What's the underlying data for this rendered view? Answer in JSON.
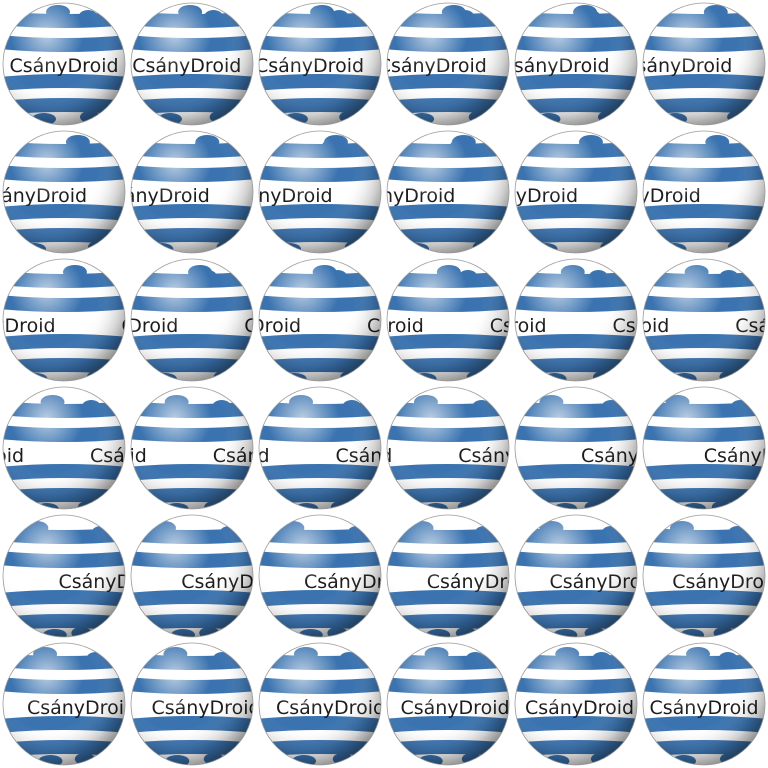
{
  "sheet": {
    "rows": 6,
    "columns": 6,
    "label_text": "CsányDroid",
    "colors": {
      "background": "#ffffff",
      "stripe": "#3a73b0",
      "sphere_highlight": "#ffffff",
      "sphere_shadow": "#6f6f6f",
      "text": "#1c1c1c"
    },
    "frames": [
      {
        "spin": 0.0,
        "tilt": 0
      },
      {
        "spin": 0.03,
        "tilt": 0
      },
      {
        "spin": 0.06,
        "tilt": 0
      },
      {
        "spin": 0.09,
        "tilt": 0
      },
      {
        "spin": 0.12,
        "tilt": 0
      },
      {
        "spin": 0.15,
        "tilt": 0
      },
      {
        "spin": 0.18,
        "tilt": 1
      },
      {
        "spin": 0.21,
        "tilt": 1
      },
      {
        "spin": 0.24,
        "tilt": 1
      },
      {
        "spin": 0.27,
        "tilt": 1
      },
      {
        "spin": 0.3,
        "tilt": 1
      },
      {
        "spin": 0.33,
        "tilt": 1
      },
      {
        "spin": 0.36,
        "tilt": 2
      },
      {
        "spin": 0.39,
        "tilt": 2
      },
      {
        "spin": 0.42,
        "tilt": 2
      },
      {
        "spin": 0.45,
        "tilt": 2
      },
      {
        "spin": 0.48,
        "tilt": 2
      },
      {
        "spin": 0.51,
        "tilt": 2
      },
      {
        "spin": 0.54,
        "tilt": 3
      },
      {
        "spin": 0.57,
        "tilt": 3
      },
      {
        "spin": 0.6,
        "tilt": 3
      },
      {
        "spin": 0.63,
        "tilt": 3
      },
      {
        "spin": 0.66,
        "tilt": 3
      },
      {
        "spin": 0.69,
        "tilt": 3
      },
      {
        "spin": 0.72,
        "tilt": 2
      },
      {
        "spin": 0.75,
        "tilt": 2
      },
      {
        "spin": 0.78,
        "tilt": 2
      },
      {
        "spin": 0.81,
        "tilt": 2
      },
      {
        "spin": 0.84,
        "tilt": 2
      },
      {
        "spin": 0.87,
        "tilt": 2
      },
      {
        "spin": 0.9,
        "tilt": 1
      },
      {
        "spin": 0.92,
        "tilt": 1
      },
      {
        "spin": 0.94,
        "tilt": 1
      },
      {
        "spin": 0.96,
        "tilt": 1
      },
      {
        "spin": 0.98,
        "tilt": 1
      },
      {
        "spin": 1.0,
        "tilt": 1
      }
    ]
  }
}
